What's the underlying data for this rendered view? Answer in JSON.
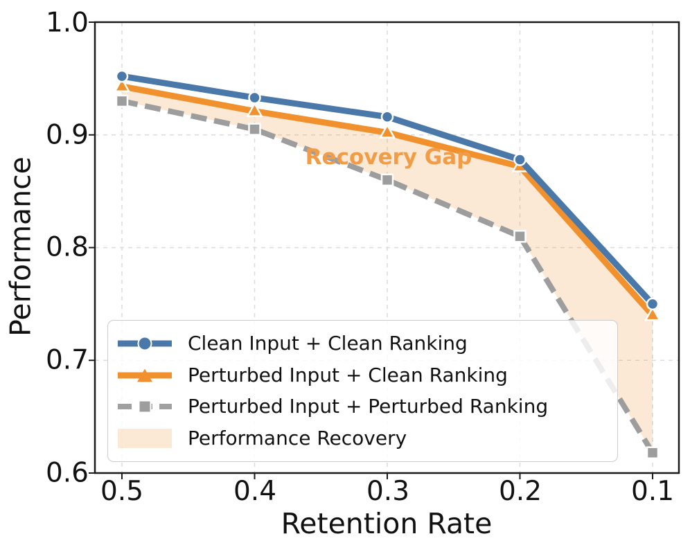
{
  "chart_data": {
    "type": "line",
    "title": "",
    "xlabel": "Retention Rate",
    "ylabel": "Performance",
    "x": [
      0.5,
      0.4,
      0.3,
      0.2,
      0.1
    ],
    "xtick_labels": [
      "0.5",
      "0.4",
      "0.3",
      "0.2",
      "0.1"
    ],
    "yticks": [
      1.0,
      0.9,
      0.8,
      0.7,
      0.6
    ],
    "ytick_labels": [
      "1.0",
      "0.9",
      "0.8",
      "0.7",
      "0.6"
    ],
    "ylim": [
      0.6,
      1.0
    ],
    "x_axis_inverted": true,
    "grid": "dashed",
    "grid_color": "#dcdcdc",
    "spine_color": "#1a1a1a",
    "series": [
      {
        "name": "Clean Input + Clean Ranking",
        "color": "#4a78a8",
        "marker": "circle",
        "line_style": "solid",
        "values": [
          0.952,
          0.933,
          0.916,
          0.878,
          0.75
        ]
      },
      {
        "name": "Perturbed Input + Clean Ranking",
        "color": "#f0912d",
        "marker": "triangle",
        "line_style": "solid",
        "values": [
          0.943,
          0.921,
          0.902,
          0.872,
          0.74
        ]
      },
      {
        "name": "Perturbed Input + Perturbed Ranking",
        "color": "#9d9d9d",
        "marker": "square",
        "line_style": "dashed",
        "values": [
          0.93,
          0.905,
          0.86,
          0.81,
          0.618
        ]
      }
    ],
    "fill_between": {
      "name": "Performance Recovery",
      "upper_series": 1,
      "lower_series": 2,
      "color": "#f0912d",
      "opacity": 0.2
    },
    "annotation": {
      "text": "Recovery Gap",
      "x": 0.3,
      "y": 0.881,
      "color": "#f39c47"
    },
    "legend": {
      "position": "lower left"
    }
  }
}
